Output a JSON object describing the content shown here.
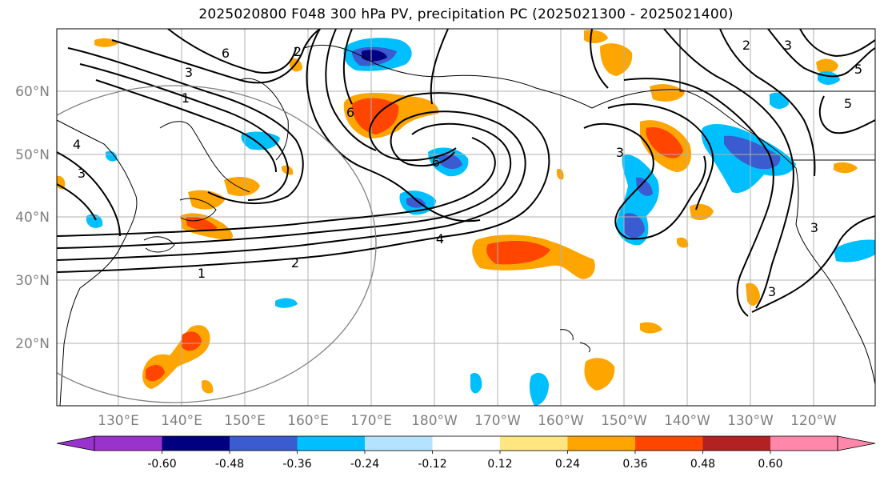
{
  "title": "2025020800 F048 300 hPa PV, precipitation PC (2025021300 - 2025021400)",
  "lon_labels": [
    "130°E",
    "140°E",
    "150°E",
    "160°E",
    "170°E",
    "180°W",
    "170°W",
    "160°W",
    "150°W",
    "140°W",
    "130°W",
    "120°W"
  ],
  "lat_labels": [
    "60°N",
    "50°N",
    "40°N",
    "30°N",
    "20°N"
  ],
  "contour_labels": [
    "1",
    "2",
    "3",
    "4",
    "5",
    "6"
  ],
  "colorbar": {
    "tick_labels": [
      "-0.60",
      "-0.48",
      "-0.36",
      "-0.24",
      "-0.12",
      "0.12",
      "0.24",
      "0.36",
      "0.48",
      "0.60"
    ],
    "colors": [
      "#9a33cc",
      "#000080",
      "#3b5bd0",
      "#00bfff",
      "#b3e3ff",
      "#ffffff",
      "#ffe680",
      "#ffa500",
      "#ff4500",
      "#b22222",
      "#ff88aa"
    ]
  },
  "colors": {
    "neg_strong": "#3b5bd0",
    "neg_mid": "#00bfff",
    "neg_weak": "#b3e3ff",
    "pos_weak": "#ffe680",
    "pos_mid": "#ffa500",
    "pos_strong": "#ff4500"
  }
}
